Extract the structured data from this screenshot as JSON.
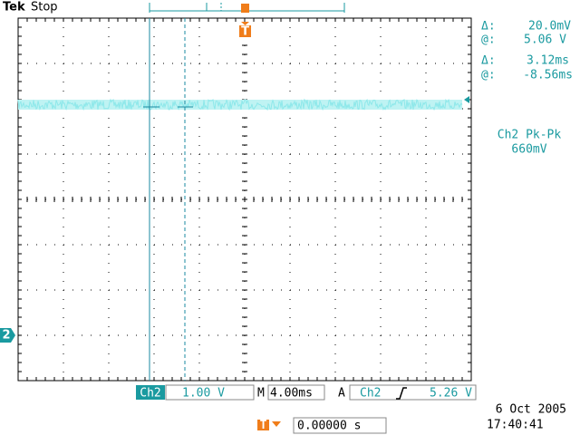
{
  "header": {
    "brand": "Tek",
    "status": "Stop"
  },
  "trigger_marker": "T",
  "channel_marker": "2",
  "cursor_readout": {
    "voltage": {
      "delta_label": "Δ:",
      "delta": "20.0mV",
      "at_label": "@:",
      "at": "5.06 V"
    },
    "time": {
      "delta_label": "Δ:",
      "delta": "3.12ms",
      "at_label": "@:",
      "at": "-8.56ms"
    }
  },
  "measurement": {
    "name": "Ch2 Pk-Pk",
    "value": "660mV"
  },
  "status_bar": {
    "channel": "Ch2",
    "scale": "1.00 V",
    "timebase_label": "M",
    "timebase": "4.00ms",
    "trigger_label": "A",
    "trigger_channel": "Ch2",
    "trigger_level": "5.26 V",
    "trigger_delay": "0.00000 s",
    "date": "6 Oct  2005",
    "time": "17:40:41"
  }
}
